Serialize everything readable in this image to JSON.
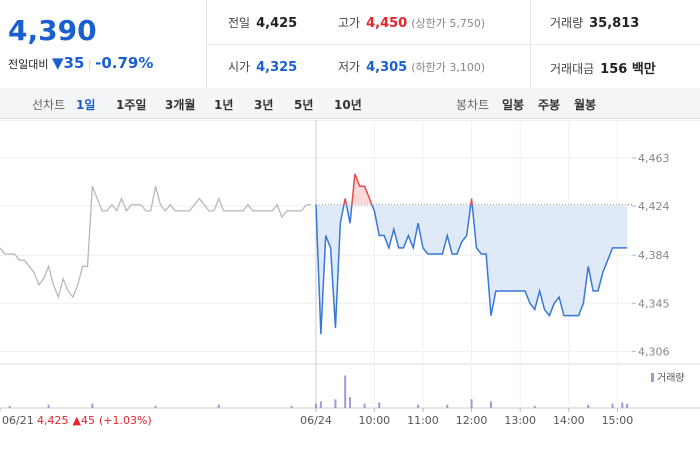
{
  "summary": {
    "price": "4,390",
    "change_label": "전일대비",
    "change": "▼35",
    "change_rate": "-0.79%"
  },
  "stats": [
    [
      {
        "label": "전일",
        "value": "4,425",
        "color": "#222222"
      },
      {
        "label": "고가",
        "value": "4,450",
        "note": "(상한가 5,750)",
        "color": "#e5242b"
      },
      {
        "label": "거래량",
        "value": "35,813",
        "color": "#222222"
      }
    ],
    [
      {
        "label": "시가",
        "value": "4,325",
        "color": "#1a5fd0"
      },
      {
        "label": "저가",
        "value": "4,305",
        "note": "(하한가 3,100)",
        "color": "#1a5fd0"
      },
      {
        "label": "거래대금",
        "value": "156 백만",
        "color": "#222222"
      }
    ]
  ],
  "tabs": {
    "line_label": "선차트",
    "line": [
      "1일",
      "1주일",
      "3개월",
      "1년",
      "3년",
      "5년",
      "10년"
    ],
    "line_active": 0,
    "candle_label": "봉차트",
    "candle": [
      "일봉",
      "주봉",
      "월봉"
    ]
  },
  "chart_data": {
    "type": "line",
    "xlim": [
      0,
      130
    ],
    "ylim": [
      4299,
      4484
    ],
    "yticks": [
      {
        "value": 4463,
        "label": "4,463"
      },
      {
        "value": 4424,
        "label": "4,424"
      },
      {
        "value": 4384,
        "label": "4,384"
      },
      {
        "value": 4345,
        "label": "4,345"
      },
      {
        "value": 4306,
        "label": "4,306"
      }
    ],
    "xticks": [
      {
        "value": 0,
        "label": "06/21"
      },
      {
        "value": 65,
        "label": "06/24"
      },
      {
        "value": 77,
        "label": "10:00"
      },
      {
        "value": 87,
        "label": "11:00"
      },
      {
        "value": 97,
        "label": "12:00"
      },
      {
        "value": 107,
        "label": "13:00"
      },
      {
        "value": 117,
        "label": "14:00"
      },
      {
        "value": 127,
        "label": "15:00"
      }
    ],
    "grid": true,
    "baseline": 4425,
    "series": [
      {
        "color": "#b9b9b9",
        "x": [
          0,
          1,
          2,
          3,
          4,
          5,
          6,
          7,
          8,
          9,
          10,
          11,
          12,
          13,
          14,
          15,
          16,
          17,
          18,
          19,
          20,
          21,
          22,
          23,
          24,
          25,
          26,
          27,
          28,
          29,
          30,
          31,
          32,
          33,
          34,
          35,
          36,
          37,
          38,
          39,
          40,
          41,
          42,
          43,
          44,
          45,
          46,
          47,
          48,
          49,
          50,
          51,
          52,
          53,
          54,
          55,
          56,
          57,
          58,
          59,
          60,
          61,
          62,
          63,
          64
        ],
        "values": [
          4390,
          4385,
          4385,
          4385,
          4380,
          4380,
          4375,
          4370,
          4360,
          4365,
          4375,
          4360,
          4350,
          4365,
          4355,
          4350,
          4360,
          4375,
          4375,
          4440,
          4430,
          4420,
          4420,
          4425,
          4420,
          4430,
          4420,
          4425,
          4425,
          4425,
          4420,
          4420,
          4440,
          4425,
          4420,
          4425,
          4420,
          4420,
          4420,
          4420,
          4425,
          4430,
          4425,
          4420,
          4420,
          4430,
          4420,
          4420,
          4420,
          4420,
          4420,
          4425,
          4420,
          4420,
          4420,
          4420,
          4420,
          4425,
          4415,
          4420,
          4420,
          4420,
          4420,
          4425,
          4425
        ]
      },
      {
        "color": "#3778d9",
        "above_color": "#ea4a4a",
        "fill": "#dfe9f8",
        "above_fill": "#fbd9d9",
        "x": [
          65,
          66,
          67,
          68,
          69,
          70,
          71,
          72,
          73,
          74,
          75,
          76,
          77,
          78,
          79,
          80,
          81,
          82,
          83,
          84,
          85,
          86,
          87,
          88,
          89,
          90,
          91,
          92,
          93,
          94,
          95,
          96,
          97,
          98,
          99,
          100,
          101,
          102,
          103,
          104,
          105,
          106,
          107,
          108,
          109,
          110,
          111,
          112,
          113,
          114,
          115,
          116,
          117,
          118,
          119,
          120,
          121,
          122,
          123,
          124,
          125,
          126,
          127,
          128,
          129
        ],
        "values": [
          4425,
          4320,
          4400,
          4390,
          4325,
          4410,
          4430,
          4410,
          4450,
          4440,
          4440,
          4430,
          4420,
          4400,
          4400,
          4390,
          4405,
          4390,
          4390,
          4400,
          4390,
          4410,
          4390,
          4385,
          4385,
          4385,
          4385,
          4400,
          4385,
          4385,
          4395,
          4400,
          4430,
          4390,
          4385,
          4385,
          4335,
          4355,
          4355,
          4355,
          4355,
          4355,
          4355,
          4355,
          4345,
          4340,
          4355,
          4340,
          4335,
          4345,
          4350,
          4335,
          4335,
          4335,
          4335,
          4345,
          4375,
          4355,
          4355,
          4370,
          4380,
          4390,
          4390,
          4390,
          4390
        ]
      }
    ],
    "volume": {
      "legend": "거래량",
      "color": "#a596d6",
      "ylim": [
        0,
        35
      ],
      "x": [
        2,
        10,
        19,
        32,
        45,
        60,
        65,
        66,
        69,
        71,
        72,
        75,
        78,
        86,
        92,
        97,
        101,
        110,
        121,
        126,
        128,
        129
      ],
      "values": [
        2,
        3,
        4,
        2,
        3,
        2,
        4,
        6,
        8,
        30,
        10,
        4,
        5,
        3,
        3,
        8,
        6,
        2,
        3,
        4,
        5,
        4
      ]
    },
    "footer": {
      "price": "4,425",
      "change": "▲45",
      "rate": "(+1.03%)"
    }
  }
}
